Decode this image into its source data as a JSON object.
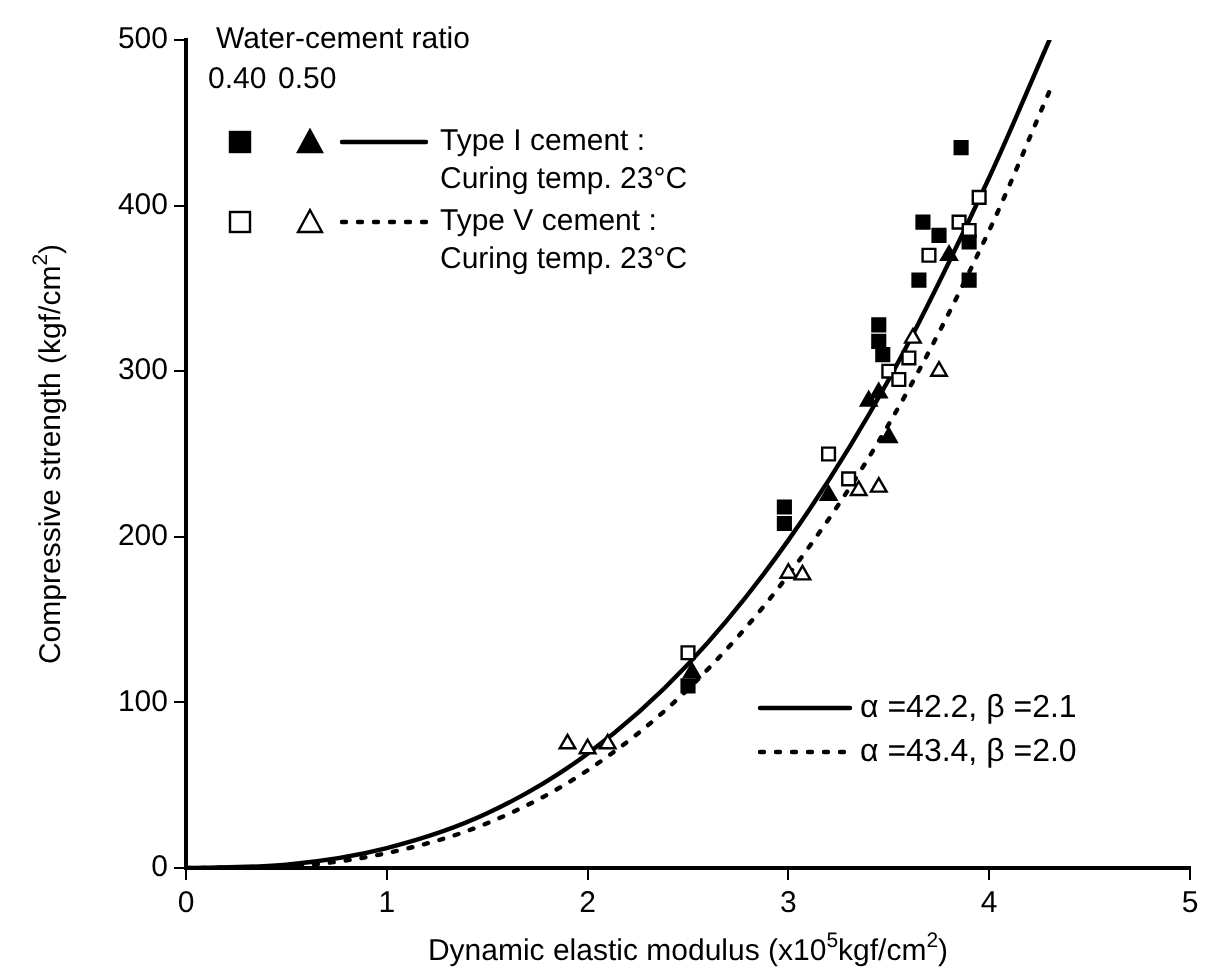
{
  "chart_data": {
    "type": "scatter",
    "xlabel": "Dynamic elastic modulus (x10$^{5}$kgf/cm$^{2}$)",
    "ylabel": "Compressive strength (kgf/cm$^{2}$)",
    "legend_title": "Water-cement ratio",
    "legend": "bottom right",
    "grid": false,
    "xlim": [
      0,
      5
    ],
    "xticks": [
      0,
      1,
      2,
      3,
      4,
      5
    ],
    "ylim": [
      0,
      500
    ],
    "yticks": [
      0,
      100,
      200,
      300,
      400,
      500
    ],
    "annotations": [
      "0.40",
      "0.50",
      "Type I cement :\nCuring temp. 23°C",
      "Type V cement :\nCuring temp. 23°C"
    ],
    "series": [
      {
        "marker": "square",
        "color": "#000000",
        "x": [
          2.98,
          2.98,
          2.5,
          3.45,
          3.45,
          3.47,
          3.65,
          3.67,
          3.75,
          3.86,
          3.9,
          3.9
        ],
        "values": [
          218,
          208,
          110,
          328,
          318,
          310,
          355,
          390,
          382,
          435,
          378,
          355
        ]
      },
      {
        "marker": "triangle",
        "color": "#000000",
        "x": [
          2.52,
          3.2,
          3.4,
          3.45,
          3.5,
          3.8
        ],
        "values": [
          118,
          225,
          282,
          287,
          260,
          370
        ]
      },
      {
        "marker": "square",
        "color": "#ffffff",
        "x": [
          2.5,
          3.2,
          3.3,
          3.5,
          3.55,
          3.6,
          3.7,
          3.85,
          3.95,
          3.9
        ],
        "values": [
          130,
          250,
          235,
          300,
          295,
          308,
          370,
          390,
          405,
          385
        ]
      },
      {
        "marker": "triangle",
        "color": "#ffffff",
        "x": [
          1.9,
          2.0,
          2.1,
          3.0,
          3.07,
          3.35,
          3.45,
          3.62,
          3.75
        ],
        "values": [
          75,
          72,
          75,
          178,
          177,
          228,
          230,
          320,
          300
        ]
      },
      {
        "type": "line",
        "name": "α =42.2, β =2.1",
        "color": "#000000",
        "line_style": "solid",
        "marker": "none",
        "x": [
          0,
          0.5,
          1,
          1.5,
          2,
          2.5,
          3,
          3.5,
          4,
          4.3
        ],
        "values": [
          0,
          2,
          12,
          33,
          69,
          123,
          198,
          295,
          417,
          500
        ]
      },
      {
        "type": "line",
        "name": "α =43.4, β =2.0",
        "color": "#000000",
        "line_style": "dotted",
        "marker": "none",
        "x": [
          0,
          0.5,
          1,
          1.5,
          2,
          2.5,
          3,
          3.5,
          4,
          4.3
        ],
        "values": [
          0,
          1,
          9,
          27,
          59,
          108,
          177,
          268,
          385,
          469
        ]
      }
    ]
  }
}
